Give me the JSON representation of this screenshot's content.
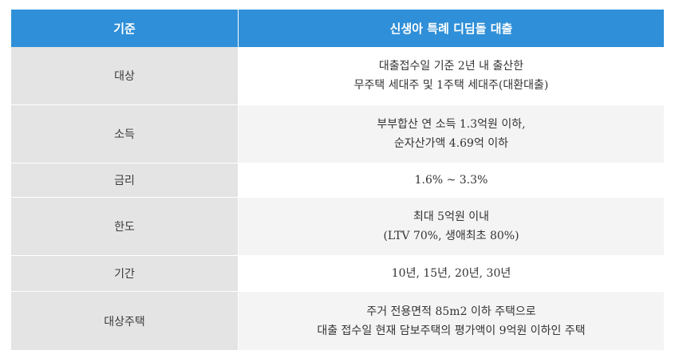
{
  "table": {
    "header": {
      "key": "기준",
      "value": "신생아 특례 디딤돌 대출"
    },
    "rows": [
      {
        "key": "대상",
        "lines": [
          "대출접수일 기준 2년 내 출산한",
          "무주택 세대주 및 1주택 세대주(대환대출)"
        ]
      },
      {
        "key": "소득",
        "lines": [
          "부부합산 연 소득 1.3억원 이하,",
          "순자산가액 4.69억 이하"
        ]
      },
      {
        "key": "금리",
        "lines": [
          "1.6% ~ 3.3%"
        ]
      },
      {
        "key": "한도",
        "lines": [
          "최대 5억원 이내",
          "(LTV 70%, 생애최초 80%)"
        ]
      },
      {
        "key": "기간",
        "lines": [
          "10년, 15년, 20년, 30년"
        ]
      },
      {
        "key": "대상주택",
        "lines": [
          "주거 전용면적 85m2 이하 주택으로",
          "대출 접수일 현재 담보주택의 평가액이 9억원 이하인 주택"
        ]
      }
    ]
  },
  "colors": {
    "header_bg": "#2f8fd8",
    "key_bg": "#e4e4e4",
    "alt_row_bg": "#f4f4f4"
  }
}
